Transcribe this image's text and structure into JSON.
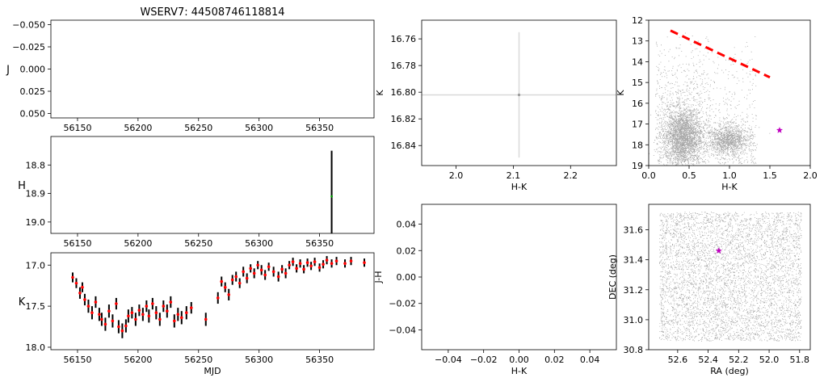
{
  "title": "WSERV7: 44508746118814",
  "chart_data": [
    {
      "id": "J",
      "type": "scatter",
      "ylabel": "J",
      "xlabel": "",
      "xlim": [
        56128,
        56395
      ],
      "ylim": [
        0.055,
        -0.055
      ],
      "xticks": [
        56150,
        56200,
        56250,
        56300,
        56350
      ],
      "yticks": [
        -0.05,
        -0.025,
        0.0,
        0.025,
        0.05
      ],
      "ytick_labels": [
        "−0.050",
        "−0.025",
        "0.000",
        "0.025",
        "0.050"
      ],
      "points": []
    },
    {
      "id": "H",
      "type": "scatter",
      "ylabel": "H",
      "xlabel": "",
      "xlim": [
        56128,
        56395
      ],
      "ylim": [
        19.04,
        18.7
      ],
      "xticks": [
        56150,
        56200,
        56250,
        56300,
        56350
      ],
      "yticks": [
        18.8,
        18.9,
        19.0
      ],
      "ytick_labels": [
        "18.8",
        "18.9",
        "19.0"
      ],
      "points": [
        {
          "x": 56360,
          "y": 18.91,
          "err": 0.16
        }
      ]
    },
    {
      "id": "K",
      "type": "scatter",
      "ylabel": "K",
      "xlabel": "MJD",
      "xlim": [
        56128,
        56395
      ],
      "ylim": [
        18.03,
        16.85
      ],
      "xticks": [
        56150,
        56200,
        56250,
        56300,
        56350
      ],
      "yticks": [
        17.0,
        17.5,
        18.0
      ],
      "ytick_labels": [
        "17.0",
        "17.5",
        "18.0"
      ],
      "points": [
        {
          "x": 56146,
          "y": 17.15,
          "err": 0.06
        },
        {
          "x": 56149,
          "y": 17.22,
          "err": 0.06
        },
        {
          "x": 56152,
          "y": 17.34,
          "err": 0.07
        },
        {
          "x": 56154,
          "y": 17.27,
          "err": 0.06
        },
        {
          "x": 56156,
          "y": 17.42,
          "err": 0.07
        },
        {
          "x": 56159,
          "y": 17.5,
          "err": 0.08
        },
        {
          "x": 56162,
          "y": 17.58,
          "err": 0.08
        },
        {
          "x": 56165,
          "y": 17.45,
          "err": 0.07
        },
        {
          "x": 56168,
          "y": 17.6,
          "err": 0.08
        },
        {
          "x": 56170,
          "y": 17.66,
          "err": 0.08
        },
        {
          "x": 56173,
          "y": 17.72,
          "err": 0.08
        },
        {
          "x": 56176,
          "y": 17.56,
          "err": 0.08
        },
        {
          "x": 56179,
          "y": 17.68,
          "err": 0.08
        },
        {
          "x": 56182,
          "y": 17.47,
          "err": 0.07
        },
        {
          "x": 56184,
          "y": 17.75,
          "err": 0.08
        },
        {
          "x": 56187,
          "y": 17.8,
          "err": 0.09
        },
        {
          "x": 56190,
          "y": 17.74,
          "err": 0.08
        },
        {
          "x": 56192,
          "y": 17.62,
          "err": 0.08
        },
        {
          "x": 56195,
          "y": 17.58,
          "err": 0.07
        },
        {
          "x": 56198,
          "y": 17.66,
          "err": 0.08
        },
        {
          "x": 56201,
          "y": 17.55,
          "err": 0.07
        },
        {
          "x": 56204,
          "y": 17.6,
          "err": 0.08
        },
        {
          "x": 56207,
          "y": 17.5,
          "err": 0.07
        },
        {
          "x": 56209,
          "y": 17.62,
          "err": 0.08
        },
        {
          "x": 56212,
          "y": 17.47,
          "err": 0.07
        },
        {
          "x": 56215,
          "y": 17.58,
          "err": 0.08
        },
        {
          "x": 56218,
          "y": 17.66,
          "err": 0.08
        },
        {
          "x": 56221,
          "y": 17.5,
          "err": 0.07
        },
        {
          "x": 56224,
          "y": 17.56,
          "err": 0.08
        },
        {
          "x": 56227,
          "y": 17.45,
          "err": 0.07
        },
        {
          "x": 56230,
          "y": 17.68,
          "err": 0.08
        },
        {
          "x": 56233,
          "y": 17.6,
          "err": 0.08
        },
        {
          "x": 56236,
          "y": 17.64,
          "err": 0.08
        },
        {
          "x": 56240,
          "y": 17.58,
          "err": 0.08
        },
        {
          "x": 56244,
          "y": 17.52,
          "err": 0.07
        },
        {
          "x": 56256,
          "y": 17.66,
          "err": 0.08
        },
        {
          "x": 56266,
          "y": 17.4,
          "err": 0.07
        },
        {
          "x": 56269,
          "y": 17.2,
          "err": 0.06
        },
        {
          "x": 56272,
          "y": 17.27,
          "err": 0.06
        },
        {
          "x": 56275,
          "y": 17.36,
          "err": 0.07
        },
        {
          "x": 56278,
          "y": 17.18,
          "err": 0.06
        },
        {
          "x": 56281,
          "y": 17.14,
          "err": 0.06
        },
        {
          "x": 56284,
          "y": 17.22,
          "err": 0.06
        },
        {
          "x": 56287,
          "y": 17.08,
          "err": 0.06
        },
        {
          "x": 56290,
          "y": 17.16,
          "err": 0.06
        },
        {
          "x": 56293,
          "y": 17.04,
          "err": 0.05
        },
        {
          "x": 56296,
          "y": 17.1,
          "err": 0.06
        },
        {
          "x": 56299,
          "y": 17.0,
          "err": 0.05
        },
        {
          "x": 56302,
          "y": 17.06,
          "err": 0.06
        },
        {
          "x": 56305,
          "y": 17.12,
          "err": 0.06
        },
        {
          "x": 56308,
          "y": 17.02,
          "err": 0.05
        },
        {
          "x": 56312,
          "y": 17.08,
          "err": 0.06
        },
        {
          "x": 56316,
          "y": 17.14,
          "err": 0.06
        },
        {
          "x": 56319,
          "y": 17.05,
          "err": 0.05
        },
        {
          "x": 56322,
          "y": 17.1,
          "err": 0.06
        },
        {
          "x": 56325,
          "y": 17.0,
          "err": 0.05
        },
        {
          "x": 56328,
          "y": 16.96,
          "err": 0.05
        },
        {
          "x": 56331,
          "y": 17.04,
          "err": 0.05
        },
        {
          "x": 56334,
          "y": 16.98,
          "err": 0.05
        },
        {
          "x": 56337,
          "y": 17.05,
          "err": 0.05
        },
        {
          "x": 56340,
          "y": 16.97,
          "err": 0.05
        },
        {
          "x": 56343,
          "y": 17.01,
          "err": 0.05
        },
        {
          "x": 56346,
          "y": 16.96,
          "err": 0.05
        },
        {
          "x": 56350,
          "y": 17.03,
          "err": 0.05
        },
        {
          "x": 56353,
          "y": 16.99,
          "err": 0.05
        },
        {
          "x": 56356,
          "y": 16.94,
          "err": 0.05
        },
        {
          "x": 56360,
          "y": 16.98,
          "err": 0.05
        },
        {
          "x": 56364,
          "y": 16.95,
          "err": 0.05
        },
        {
          "x": 56371,
          "y": 16.98,
          "err": 0.05
        },
        {
          "x": 56376,
          "y": 16.95,
          "err": 0.05
        },
        {
          "x": 56387,
          "y": 16.97,
          "err": 0.05
        }
      ]
    },
    {
      "id": "cmd-zoom",
      "type": "scatter",
      "xlabel": "H-K",
      "ylabel": "K",
      "xlim": [
        1.94,
        2.28
      ],
      "ylim": [
        16.855,
        16.746
      ],
      "xticks": [
        2.0,
        2.1,
        2.2
      ],
      "xtick_labels": [
        "2.0",
        "2.1",
        "2.2"
      ],
      "yticks": [
        16.76,
        16.78,
        16.8,
        16.82,
        16.84
      ],
      "ytick_labels": [
        "16.76",
        "16.78",
        "16.80",
        "16.82",
        "16.84"
      ],
      "points": [
        {
          "x": 2.11,
          "y": 16.802,
          "xerr": 0.17,
          "yerr": 0.047
        }
      ]
    },
    {
      "id": "cmd",
      "type": "scatter",
      "xlabel": "H-K",
      "ylabel": "K",
      "xlim": [
        0.0,
        2.0
      ],
      "ylim": [
        19,
        12
      ],
      "xticks": [
        0.0,
        0.5,
        1.0,
        1.5,
        2.0
      ],
      "xtick_labels": [
        "0.0",
        "0.5",
        "1.0",
        "1.5",
        "2.0"
      ],
      "yticks": [
        12,
        13,
        14,
        15,
        16,
        17,
        18,
        19
      ],
      "ytick_labels": [
        "12",
        "13",
        "14",
        "15",
        "16",
        "17",
        "18",
        "19"
      ],
      "reddening_line": {
        "x": [
          0.27,
          1.5
        ],
        "y": [
          12.5,
          14.75
        ],
        "color": "#ff0000"
      },
      "target": {
        "x": 1.62,
        "y": 17.3,
        "color": "#c000c0"
      }
    },
    {
      "id": "ccd",
      "type": "scatter",
      "xlabel": "H-K",
      "ylabel": "J-H",
      "xlim": [
        -0.055,
        0.055
      ],
      "ylim": [
        -0.055,
        0.055
      ],
      "xticks": [
        -0.04,
        -0.02,
        0.0,
        0.02,
        0.04
      ],
      "xtick_labels": [
        "−0.04",
        "−0.02",
        "0.00",
        "0.02",
        "0.04"
      ],
      "yticks": [
        -0.04,
        -0.02,
        0.0,
        0.02,
        0.04
      ],
      "ytick_labels": [
        "−0.04",
        "−0.02",
        "0.00",
        "0.02",
        "0.04"
      ],
      "points": []
    },
    {
      "id": "sky",
      "type": "scatter",
      "xlabel": "RA (deg)",
      "ylabel": "DEC (deg)",
      "xlim": [
        52.79,
        51.73
      ],
      "ylim": [
        30.8,
        31.77
      ],
      "xticks": [
        52.6,
        52.4,
        52.2,
        52.0,
        51.8
      ],
      "xtick_labels": [
        "52.6",
        "52.4",
        "52.2",
        "52.0",
        "51.8"
      ],
      "yticks": [
        30.8,
        31.0,
        31.2,
        31.4,
        31.6
      ],
      "ytick_labels": [
        "30.8",
        "31.0",
        "31.2",
        "31.4",
        "31.6"
      ],
      "target": {
        "x": 52.33,
        "y": 31.46,
        "color": "#c000c0"
      }
    }
  ]
}
